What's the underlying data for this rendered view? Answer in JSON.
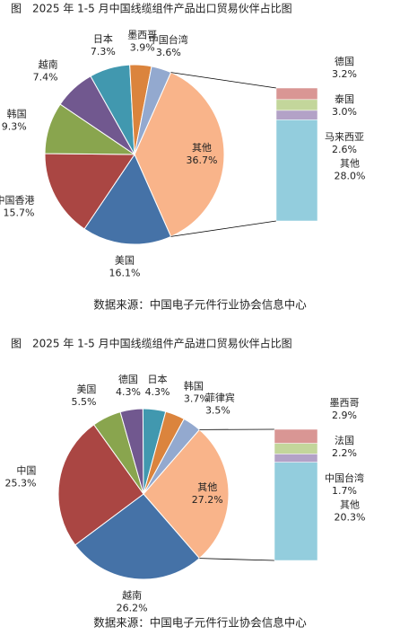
{
  "chart_data": [
    {
      "type": "pie",
      "title": "图　2025 年 1-5 月中国线缆组件产品出口贸易伙伴占比图",
      "categories": [
        "其他",
        "美国",
        "中国香港",
        "韩国",
        "越南",
        "日本",
        "墨西哥",
        "中国台湾"
      ],
      "values": [
        36.7,
        16.1,
        15.7,
        9.3,
        7.4,
        7.3,
        3.9,
        3.6
      ],
      "value_labels": [
        "36.7%",
        "16.1%",
        "15.7%",
        "9.3%",
        "7.4%",
        "7.3%",
        "3.9%",
        "3.6%"
      ],
      "colors": [
        "#f9b48a",
        "#4572a7",
        "#aa4643",
        "#89a54e",
        "#71588f",
        "#4198af",
        "#db843d",
        "#93a9cf"
      ],
      "breakout": {
        "categories": [
          "德国",
          "泰国",
          "马来西亚",
          "其他"
        ],
        "values": [
          3.2,
          3.0,
          2.6,
          28.0
        ],
        "value_labels": [
          "3.2%",
          "3.0%",
          "2.6%",
          "28.0%"
        ],
        "colors": [
          "#d99694",
          "#c3d69b",
          "#b3a2c7",
          "#93cddd"
        ]
      },
      "source": "数据来源：中国电子元件行业协会信息中心"
    },
    {
      "type": "pie",
      "title": "图　2025 年 1-5 月中国线缆组件产品进口贸易伙伴占比图",
      "categories": [
        "其他",
        "越南",
        "中国",
        "美国",
        "德国",
        "日本",
        "韩国",
        "菲律宾"
      ],
      "values": [
        27.2,
        26.2,
        25.3,
        5.5,
        4.3,
        4.3,
        3.7,
        3.5
      ],
      "value_labels": [
        "27.2%",
        "26.2%",
        "25.3%",
        "5.5%",
        "4.3%",
        "4.3%",
        "3.7%",
        "3.5%"
      ],
      "colors": [
        "#f9b48a",
        "#4572a7",
        "#aa4643",
        "#89a54e",
        "#71588f",
        "#4198af",
        "#db843d",
        "#93a9cf"
      ],
      "breakout": {
        "categories": [
          "墨西哥",
          "法国",
          "中国台湾",
          "其他"
        ],
        "values": [
          2.9,
          2.2,
          1.7,
          20.3
        ],
        "value_labels": [
          "2.9%",
          "2.2%",
          "1.7%",
          "20.3%"
        ],
        "colors": [
          "#d99694",
          "#c3d69b",
          "#b3a2c7",
          "#93cddd"
        ]
      },
      "source": "数据来源：中国电子元件行业协会信息中心"
    }
  ]
}
